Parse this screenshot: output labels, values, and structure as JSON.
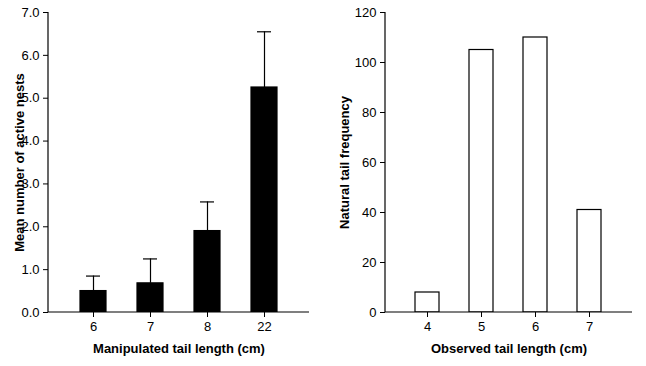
{
  "chart_data": [
    {
      "type": "bar",
      "x_label": "Manipulated tail length (cm)",
      "y_label": "Mean number of active nests",
      "categories": [
        "6",
        "7",
        "8",
        "22"
      ],
      "values": [
        0.5,
        0.68,
        1.9,
        5.25
      ],
      "errors": [
        0.35,
        0.57,
        0.68,
        1.3
      ],
      "color": "#000000",
      "ylim": [
        0,
        7
      ],
      "yticks": [
        0,
        1,
        2,
        3,
        4,
        5,
        6,
        7
      ]
    },
    {
      "type": "bar",
      "x_label": "Observed tail length (cm)",
      "y_label": "Natural tail frequency",
      "categories": [
        "4",
        "5",
        "6",
        "7"
      ],
      "values": [
        8,
        105,
        110,
        41
      ],
      "color": "#ffffff",
      "ylim": [
        0,
        120
      ],
      "yticks": [
        0,
        20,
        40,
        60,
        80,
        100,
        120
      ]
    }
  ]
}
